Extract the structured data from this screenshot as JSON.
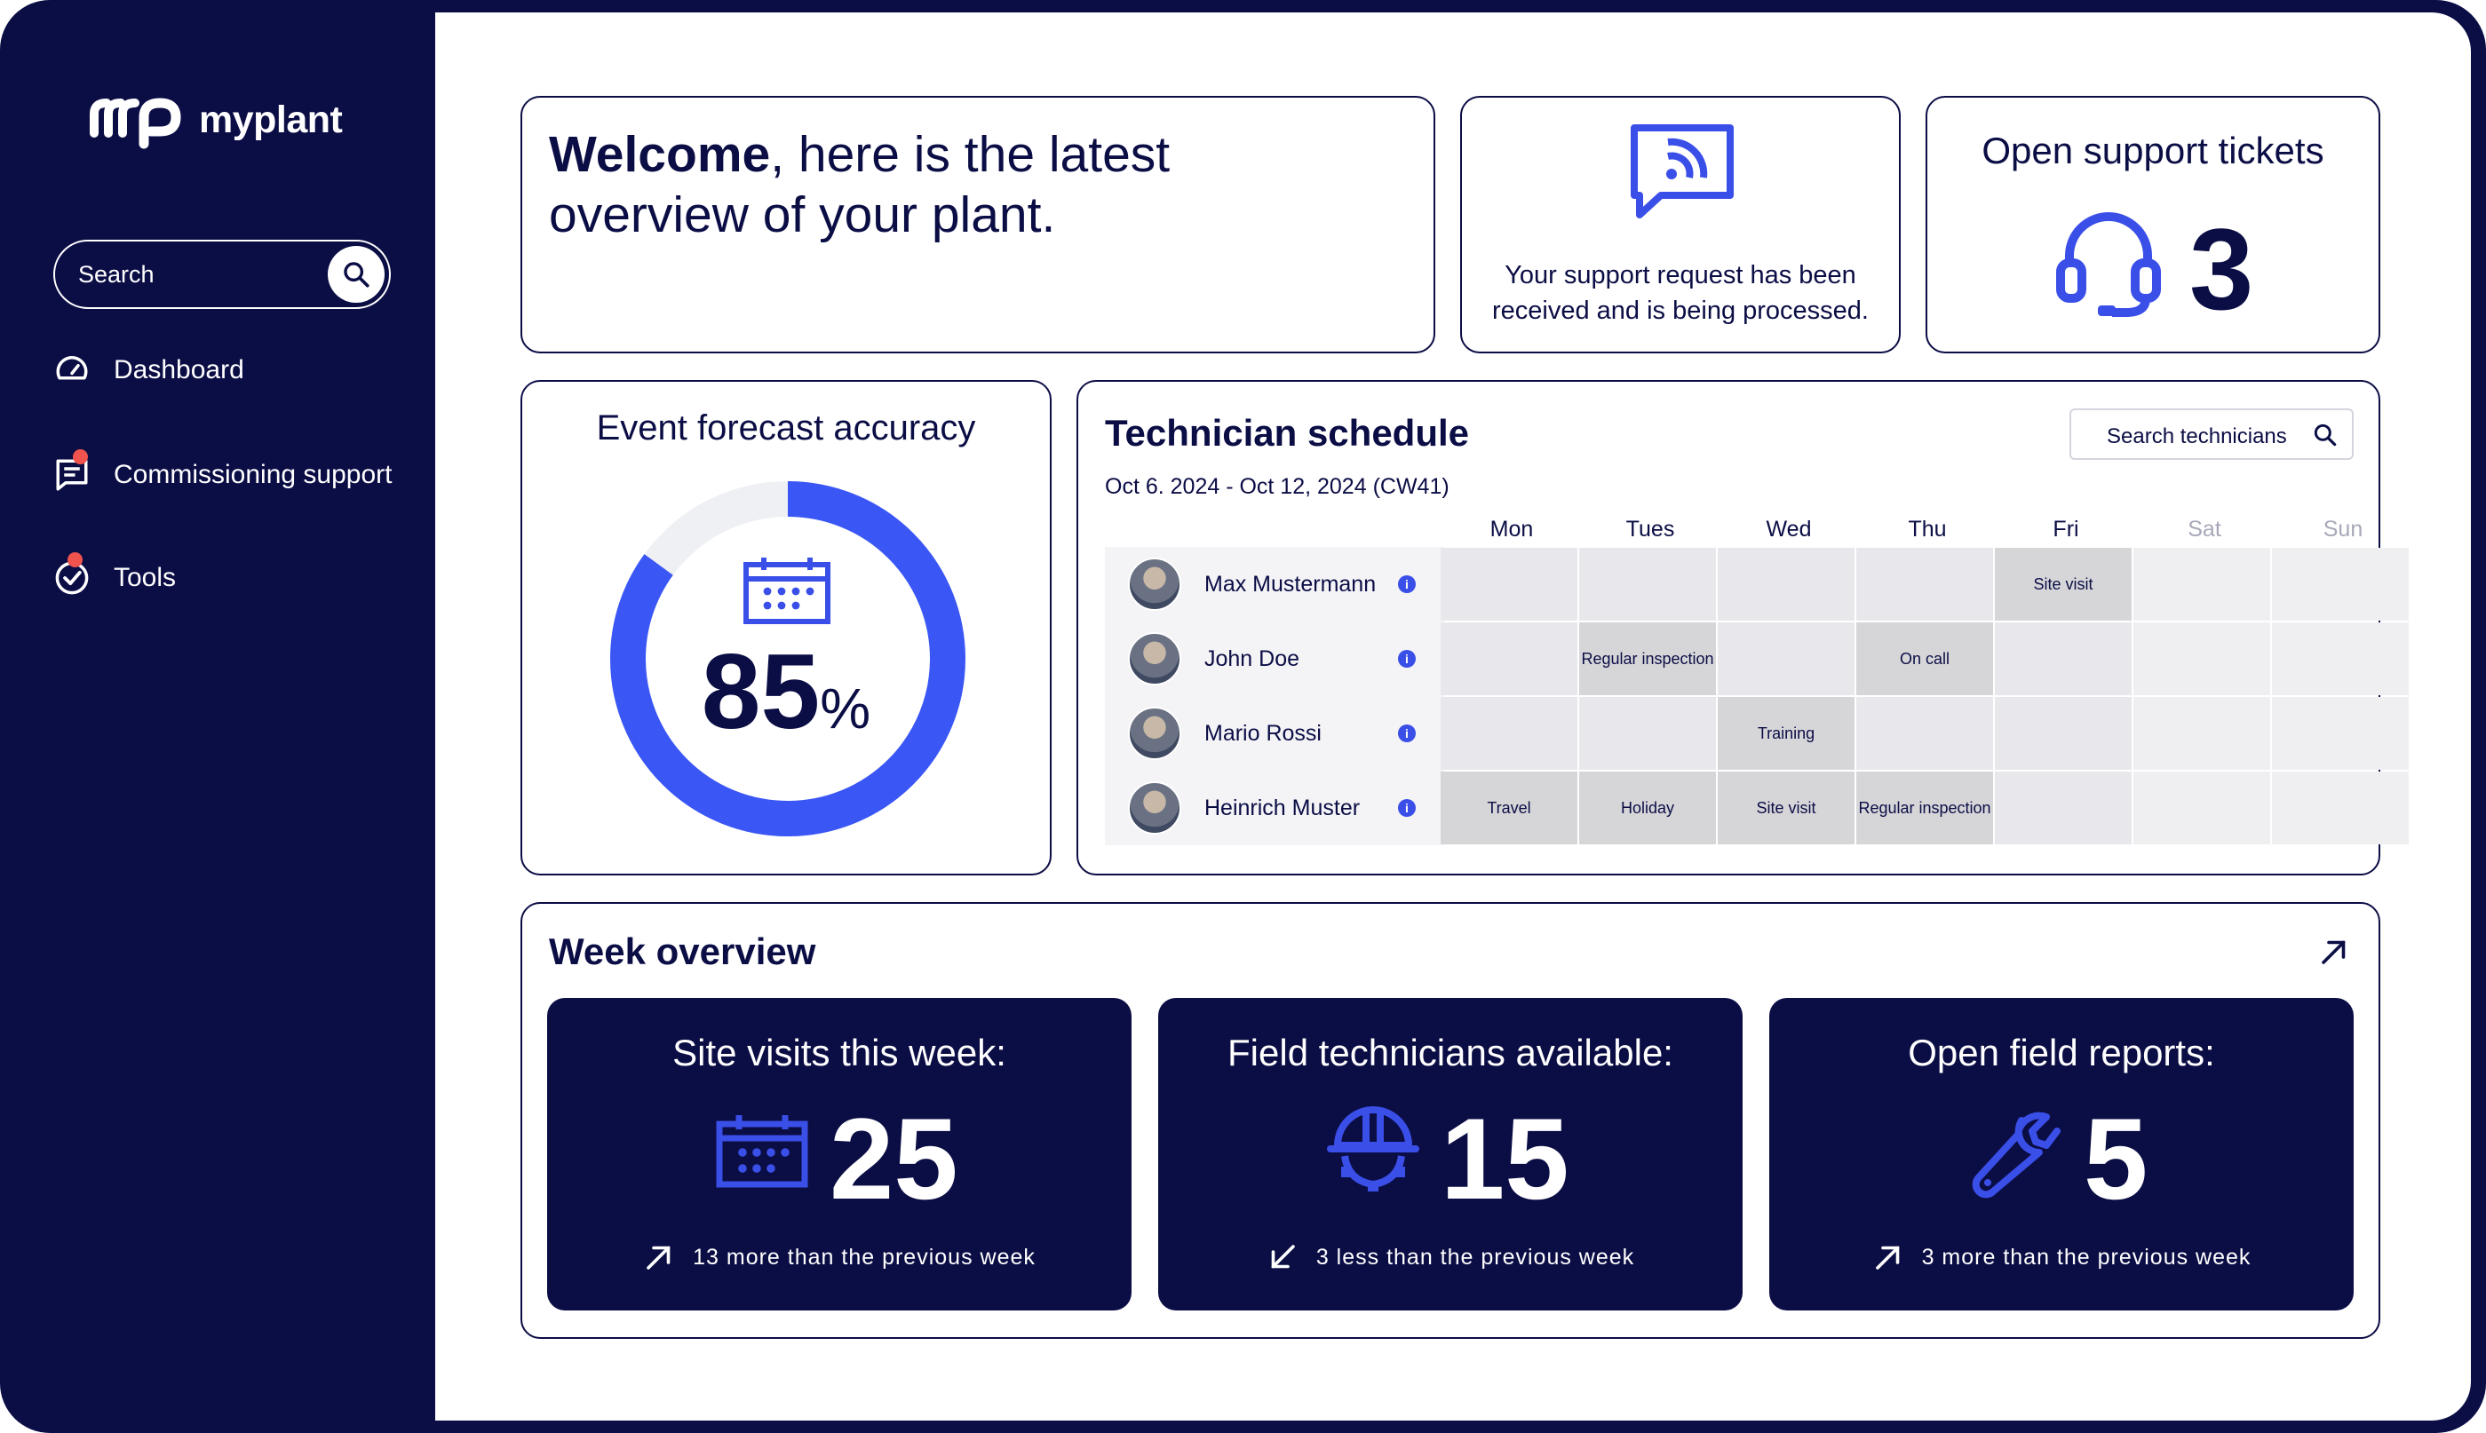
{
  "app": {
    "name": "myplant"
  },
  "sidebar": {
    "search_placeholder": "Search",
    "items": [
      {
        "label": "Dashboard",
        "icon": "speedometer-icon",
        "badge": false
      },
      {
        "label": "Commissioning support",
        "icon": "chat-list-icon",
        "badge": true
      },
      {
        "label": "Tools",
        "icon": "check-circle-icon",
        "badge": true
      }
    ]
  },
  "welcome": {
    "bold": "Welcome",
    "line1_rest": ", here is the latest",
    "line2": "overview of your plant."
  },
  "support_status": {
    "line1": "Your support request has been",
    "line2": "received and is being processed."
  },
  "tickets": {
    "title": "Open support tickets",
    "count": "3"
  },
  "forecast": {
    "title": "Event forecast accuracy",
    "value": "85",
    "unit": "%",
    "accuracy_fraction": 0.85
  },
  "schedule": {
    "title": "Technician schedule",
    "range": "Oct 6. 2024 - Oct 12, 2024 (CW41)",
    "search_label": "Search technicians",
    "days": [
      "Mon",
      "Tues",
      "Wed",
      "Thu",
      "Fri",
      "Sat",
      "Sun"
    ],
    "technicians": [
      {
        "name": "Max Mustermann",
        "slots": [
          "",
          "",
          "",
          "",
          "Site visit",
          "",
          ""
        ]
      },
      {
        "name": "John Doe",
        "slots": [
          "",
          "Regular inspection",
          "",
          "On call",
          "",
          "",
          ""
        ]
      },
      {
        "name": "Mario Rossi",
        "slots": [
          "",
          "",
          "Training",
          "",
          "",
          "",
          ""
        ]
      },
      {
        "name": "Heinrich Muster",
        "slots": [
          "Travel",
          "Holiday",
          "Site visit",
          "Regular inspection",
          "",
          "",
          ""
        ]
      }
    ]
  },
  "week_overview": {
    "title": "Week overview",
    "stats": [
      {
        "title": "Site visits this week:",
        "value": "25",
        "icon": "calendar-icon",
        "trend": "up",
        "note": "13 more than the previous week"
      },
      {
        "title": "Field technicians available:",
        "value": "15",
        "icon": "hard-hat-gear-icon",
        "trend": "down",
        "note": "3 less than the previous week"
      },
      {
        "title": "Open field reports:",
        "value": "5",
        "icon": "wrench-icon",
        "trend": "up",
        "note": "3 more than the previous week"
      }
    ]
  },
  "colors": {
    "navy": "#0b0d45",
    "accent": "#3a4fe8",
    "badge": "#f0524e"
  }
}
